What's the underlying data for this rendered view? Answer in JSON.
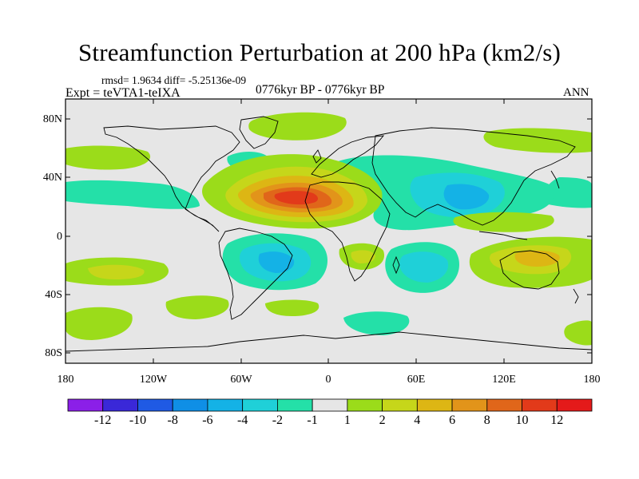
{
  "title": "Streamfunction Perturbation at 200 hPa (km2/s)",
  "stats": "rmsd= 1.9634 diff= -5.25136e-09",
  "experiment": "Expt = teVTA1-teIXA",
  "period": "0776kyr BP - 0776kyr BP",
  "season": "ANN",
  "lat_labels": [
    "80N",
    "40N",
    "0",
    "40S",
    "80S"
  ],
  "lon_labels": [
    "180",
    "120W",
    "60W",
    "0",
    "60E",
    "120E",
    "180"
  ],
  "colorbar": {
    "labels": [
      "-12",
      "-10",
      "-8",
      "-6",
      "-4",
      "-2",
      "-1",
      "1",
      "2",
      "4",
      "6",
      "8",
      "10",
      "12"
    ],
    "colors": [
      "#8b1fe8",
      "#3a28d8",
      "#1f5ae4",
      "#0f8fe6",
      "#14b2e6",
      "#1fd0d8",
      "#24e0a8",
      "#e6e6e6",
      "#9bdc1a",
      "#c6d61a",
      "#ddb614",
      "#e2941a",
      "#e0661a",
      "#e23a1a",
      "#e41a1a"
    ]
  },
  "chart_data": {
    "type": "heatmap",
    "title": "Streamfunction Perturbation at 200 hPa (km2/s)",
    "units": "km2/s",
    "levels": [
      -12,
      -10,
      -8,
      -6,
      -4,
      -2,
      -1,
      1,
      2,
      4,
      6,
      8,
      10,
      12
    ],
    "lon_range": [
      -180,
      180
    ],
    "lat_range": [
      -90,
      90
    ],
    "features": [
      {
        "name": "north-atlantic-africa-maximum",
        "lon": -25,
        "lat": 28,
        "value": 10
      },
      {
        "name": "asia-minimum",
        "lon": 75,
        "lat": 30,
        "value": -4
      },
      {
        "name": "south-america-minimum",
        "lon": -40,
        "lat": -20,
        "value": -4
      },
      {
        "name": "south-indian-ocean-minimum",
        "lon": 65,
        "lat": -25,
        "value": -3
      },
      {
        "name": "australia-maximum",
        "lon": 145,
        "lat": -20,
        "value": 4
      },
      {
        "name": "south-pacific-maximum",
        "lon": -140,
        "lat": -25,
        "value": 2
      },
      {
        "name": "arctic-atlantic-positive",
        "lon": -20,
        "lat": 75,
        "value": 1.5
      },
      {
        "name": "north-pacific-negative",
        "lon": -165,
        "lat": 40,
        "value": -1.5
      }
    ]
  }
}
